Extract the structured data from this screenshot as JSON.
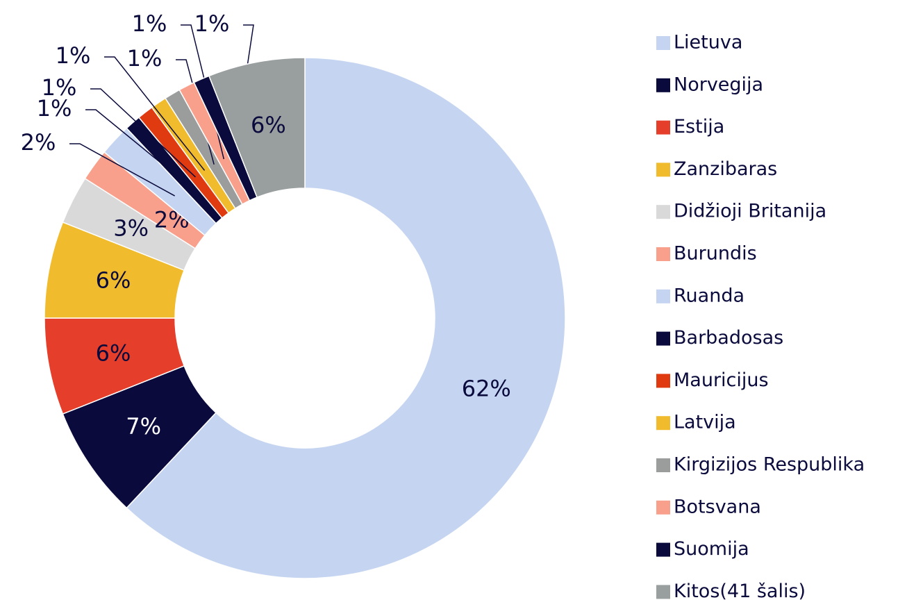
{
  "chart_data": {
    "type": "donut",
    "categories": [
      "Lietuva",
      "Norvegija",
      "Estija",
      "Zanzibaras",
      "Didžioji Britanija",
      "Burundis",
      "Ruanda",
      "Barbadosas",
      "Mauricijus",
      "Latvija",
      "Kirgizijos Respublika",
      "Botsvana",
      "Suomija",
      "Kitos(41 šalis)"
    ],
    "values": [
      62,
      7,
      6,
      6,
      3,
      2,
      2,
      1,
      1,
      1,
      1,
      1,
      1,
      6
    ],
    "value_labels": [
      "62%",
      "7%",
      "6%",
      "6%",
      "3%",
      "2%",
      "2%",
      "1%",
      "1%",
      "1%",
      "1%",
      "1%",
      "1%",
      "6%"
    ],
    "colors": [
      "#c5d5f1",
      "#0a0a3c",
      "#e53e2b",
      "#f0bc2e",
      "#d9d9d9",
      "#f9a08c",
      "#c5d5f1",
      "#0a0a3c",
      "#e03a10",
      "#f0bc2e",
      "#9b9d9d",
      "#f9a08c",
      "#0a0a3c",
      "#999e9e"
    ],
    "legend": "right"
  }
}
